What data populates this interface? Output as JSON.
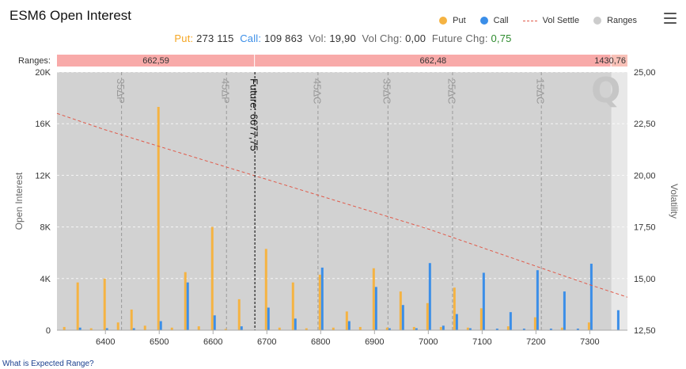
{
  "title": "ESM6 Open Interest",
  "legend": [
    {
      "label": "Put",
      "color": "#f5b342",
      "kind": "dot"
    },
    {
      "label": "Call",
      "color": "#3b8ee8",
      "kind": "dot"
    },
    {
      "label": "Vol Settle",
      "color": "#e05a4a",
      "kind": "dash"
    },
    {
      "label": "Ranges",
      "color": "#cccccc",
      "kind": "dot"
    }
  ],
  "stats": {
    "put_label": "Put:",
    "put_value": "273 115",
    "call_label": "Call:",
    "call_value": "109 863",
    "vol_label": "Vol:",
    "vol_value": "19,90",
    "volchg_label": "Vol Chg:",
    "volchg_value": "0,00",
    "futchg_label": "Future Chg:",
    "futchg_value": "0,75"
  },
  "footer_link": "What is Expected Range?",
  "chart_data": {
    "type": "bar",
    "xlabel": "",
    "ylabel": "Open Interest",
    "y2label": "Volatility",
    "x_ticks": [
      6400,
      6500,
      6600,
      6700,
      6800,
      6900,
      7000,
      7100,
      7200,
      7300
    ],
    "xlim": [
      6310,
      7370
    ],
    "ylim": [
      0,
      20000
    ],
    "y_ticks": [
      0,
      4000,
      8000,
      12000,
      16000,
      20000
    ],
    "y_tick_labels": [
      "0",
      "4K",
      "8K",
      "12K",
      "16K",
      "20K"
    ],
    "y2lim": [
      12.5,
      25.0
    ],
    "y2_ticks": [
      12.5,
      15.0,
      17.5,
      20.0,
      22.5,
      25.0
    ],
    "y2_tick_labels": [
      "12,50",
      "15,00",
      "17,50",
      "20,00",
      "22,50",
      "25,00"
    ],
    "grid": true,
    "ranges_label": "Ranges:",
    "ranges": [
      {
        "from": 6310,
        "to": 6677.75,
        "label": "662,59"
      },
      {
        "from": 6677.75,
        "to": 7340,
        "label": "662,48"
      },
      {
        "from": 7340,
        "to": 7370,
        "label": "1430,76"
      }
    ],
    "range_shade": {
      "from": 6310,
      "to": 7340
    },
    "future": {
      "x": 6677.75,
      "label": "Future: 6677,75"
    },
    "delta_lines": [
      {
        "x": 6430,
        "label": "35ΔP"
      },
      {
        "x": 6625,
        "label": "45ΔP"
      },
      {
        "x": 6795,
        "label": "45ΔC"
      },
      {
        "x": 6925,
        "label": "35ΔC"
      },
      {
        "x": 7045,
        "label": "25ΔC"
      },
      {
        "x": 7210,
        "label": "15ΔC"
      }
    ],
    "series": [
      {
        "name": "Put",
        "color": "#f5b342",
        "x": [
          6325,
          6350,
          6375,
          6400,
          6425,
          6450,
          6475,
          6500,
          6525,
          6550,
          6575,
          6600,
          6625,
          6650,
          6700,
          6725,
          6750,
          6775,
          6800,
          6825,
          6850,
          6875,
          6900,
          6925,
          6950,
          6975,
          7000,
          7025,
          7050,
          7075,
          7100,
          7150,
          7200,
          7250,
          7300
        ],
        "values": [
          250,
          3700,
          150,
          4000,
          600,
          1600,
          350,
          17300,
          200,
          4500,
          300,
          8000,
          100,
          2400,
          6300,
          200,
          3700,
          150,
          4300,
          200,
          1450,
          250,
          4800,
          200,
          3000,
          250,
          2100,
          250,
          3300,
          200,
          1700,
          300,
          1000,
          200,
          600
        ]
      },
      {
        "name": "Call",
        "color": "#3b8ee8",
        "x": [
          6350,
          6400,
          6450,
          6500,
          6550,
          6600,
          6650,
          6700,
          6750,
          6800,
          6850,
          6900,
          6925,
          6950,
          6975,
          7000,
          7025,
          7050,
          7075,
          7100,
          7125,
          7150,
          7175,
          7200,
          7225,
          7250,
          7275,
          7300,
          7350
        ],
        "values": [
          200,
          150,
          150,
          700,
          3700,
          1150,
          300,
          1750,
          900,
          4850,
          700,
          3350,
          150,
          1950,
          150,
          5200,
          350,
          1250,
          150,
          4450,
          120,
          1400,
          120,
          4650,
          120,
          3000,
          120,
          5150,
          1550
        ]
      }
    ],
    "vol_settle": {
      "name": "Vol Settle",
      "color": "#e05a4a",
      "x": [
        6310,
        6400,
        6500,
        6600,
        6700,
        6800,
        6900,
        7000,
        7100,
        7200,
        7300,
        7370
      ],
      "values": [
        23.0,
        22.2,
        21.4,
        20.6,
        19.8,
        19.0,
        18.2,
        17.4,
        16.5,
        15.6,
        14.7,
        14.1
      ]
    }
  }
}
